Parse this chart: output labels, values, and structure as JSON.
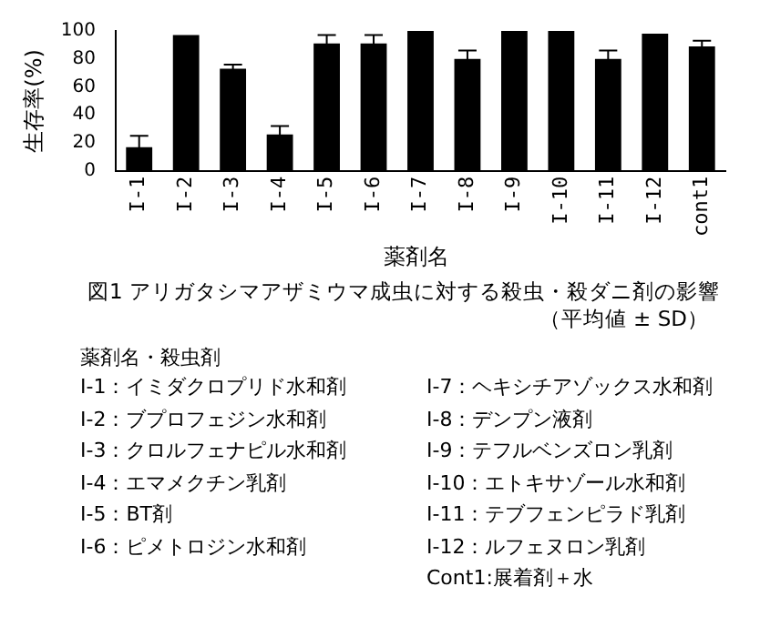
{
  "chart_data": {
    "type": "bar",
    "title": "図1 アリガタシマアザミウマ成虫に対する殺虫・殺ダニ剤の影響",
    "subtitle": "（平均値 ± SD）",
    "xlabel": "薬剤名",
    "ylabel": "生存率(%)",
    "categories": [
      "I-1",
      "I-2",
      "I-3",
      "I-4",
      "I-5",
      "I-6",
      "I-7",
      "I-8",
      "I-9",
      "I-10",
      "I-11",
      "I-12",
      "cont1"
    ],
    "values": [
      17,
      97,
      73,
      26,
      91,
      91,
      100,
      80,
      100,
      100,
      80,
      98,
      89
    ],
    "errors": [
      8,
      null,
      3,
      6,
      6,
      6,
      null,
      6,
      null,
      null,
      6,
      null,
      4
    ],
    "color": "#000000",
    "ylim": [
      0,
      100
    ],
    "yticks": [
      0,
      20,
      40,
      60,
      80,
      100
    ],
    "grid": false,
    "legend": false,
    "annotations": [
      "薬剤名・殺虫剤",
      "I-1：イミダクロプリド水和剤",
      "I-2：ブプロフェジン水和剤",
      "I-3：クロルフェナピル水和剤",
      "I-4：エマメクチン乳剤",
      "I-5：BT剤",
      "I-6：ピメトロジン水和剤",
      "I-7：ヘキシチアゾックス水和剤",
      "I-8：デンプン液剤",
      "I-9：テフルベンズロン乳剤",
      "I-10：エトキサゾール水和剤",
      "I-11：テブフェンピラド乳剤",
      "I-12：ルフェヌロン乳剤",
      "Cont1:展着剤＋水"
    ]
  }
}
